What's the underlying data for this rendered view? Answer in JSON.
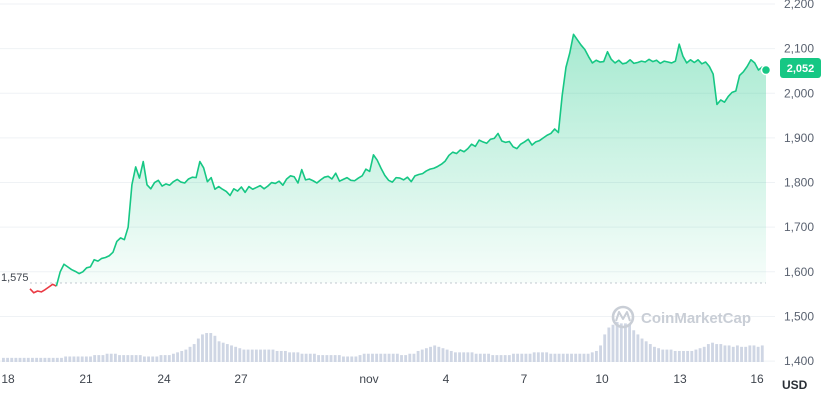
{
  "chart_data": {
    "type": "line",
    "title": "",
    "xlabel": "",
    "ylabel": "",
    "unit_label": "USD",
    "ylim": [
      1380,
      2200
    ],
    "y_ticks": [
      "2,200",
      "2,100",
      "2,000",
      "1,900",
      "1,800",
      "1,700",
      "1,600",
      "1,500",
      "1,400"
    ],
    "x_ticks": [
      "18",
      "21",
      "24",
      "27",
      "nov",
      "4",
      "7",
      "10",
      "13",
      "16"
    ],
    "start_label": "1,575",
    "current_label": "2,052",
    "watermark": "CoinMarketCap",
    "grid": true,
    "colors": {
      "up": "#16c784",
      "down": "#ea3943",
      "volume": "#cfd6e4",
      "grid": "#eff2f5",
      "reference": "#c3c8d0"
    },
    "series": [
      {
        "start_value": 1575,
        "values": [
          1562,
          1553,
          1557,
          1555,
          1560,
          1566,
          1572,
          1568,
          1600,
          1617,
          1611,
          1605,
          1601,
          1596,
          1600,
          1609,
          1611,
          1627,
          1624,
          1630,
          1632,
          1636,
          1644,
          1668,
          1676,
          1672,
          1700,
          1795,
          1835,
          1810,
          1847,
          1795,
          1786,
          1800,
          1805,
          1792,
          1797,
          1794,
          1802,
          1807,
          1801,
          1799,
          1808,
          1812,
          1811,
          1847,
          1833,
          1802,
          1811,
          1785,
          1791,
          1785,
          1780,
          1771,
          1786,
          1781,
          1790,
          1778,
          1791,
          1785,
          1789,
          1793,
          1786,
          1792,
          1800,
          1798,
          1803,
          1794,
          1808,
          1815,
          1813,
          1799,
          1829,
          1806,
          1808,
          1804,
          1799,
          1806,
          1812,
          1814,
          1808,
          1821,
          1803,
          1807,
          1811,
          1805,
          1804,
          1810,
          1815,
          1830,
          1825,
          1862,
          1850,
          1832,
          1816,
          1805,
          1801,
          1811,
          1810,
          1806,
          1812,
          1802,
          1815,
          1818,
          1820,
          1826,
          1830,
          1832,
          1836,
          1841,
          1848,
          1861,
          1868,
          1865,
          1873,
          1869,
          1876,
          1886,
          1881,
          1895,
          1891,
          1888,
          1897,
          1899,
          1910,
          1893,
          1890,
          1892,
          1880,
          1876,
          1886,
          1891,
          1897,
          1884,
          1891,
          1894,
          1900,
          1906,
          1910,
          1920,
          1912,
          1995,
          2058,
          2090,
          2132,
          2120,
          2108,
          2098,
          2082,
          2068,
          2074,
          2070,
          2071,
          2093,
          2076,
          2068,
          2074,
          2066,
          2068,
          2075,
          2067,
          2069,
          2072,
          2070,
          2076,
          2071,
          2074,
          2067,
          2072,
          2070,
          2068,
          2072,
          2110,
          2083,
          2068,
          2075,
          2069,
          2075,
          2066,
          2070,
          2060,
          2043,
          1975,
          1985,
          1980,
          1993,
          2002,
          2005,
          2040,
          2048,
          2060,
          2075,
          2068,
          2052,
          2059,
          2052
        ]
      }
    ],
    "volume_values": [
      3,
      3,
      3,
      3,
      3,
      3,
      3,
      3,
      3,
      3,
      3,
      3,
      3,
      3,
      3,
      4,
      4,
      4,
      4,
      4,
      4,
      4,
      5,
      5,
      5,
      6,
      6,
      6,
      5,
      5,
      5,
      5,
      5,
      5,
      4,
      4,
      4,
      4,
      5,
      5,
      5,
      6,
      7,
      8,
      9,
      11,
      13,
      17,
      20,
      21,
      21,
      19,
      15,
      14,
      13,
      12,
      11,
      10,
      9,
      9,
      9,
      9,
      9,
      9,
      9,
      9,
      8,
      8,
      8,
      7,
      7,
      7,
      6,
      6,
      6,
      6,
      5,
      5,
      5,
      5,
      5,
      5,
      4,
      4,
      4,
      4,
      5,
      6,
      6,
      6,
      6,
      6,
      6,
      6,
      6,
      6,
      5,
      5,
      6,
      6,
      8,
      9,
      10,
      11,
      12,
      11,
      10,
      9,
      8,
      7,
      7,
      7,
      7,
      7,
      6,
      6,
      6,
      6,
      5,
      5,
      5,
      5,
      5,
      6,
      6,
      6,
      6,
      6,
      7,
      7,
      7,
      7,
      6,
      6,
      6,
      6,
      6,
      6,
      6,
      6,
      6,
      6,
      7,
      8,
      12,
      20,
      25,
      27,
      29,
      28,
      28,
      27,
      23,
      20,
      17,
      15,
      13,
      11,
      10,
      9,
      9,
      9,
      8,
      8,
      8,
      8,
      8,
      9,
      10,
      11,
      13,
      14,
      13,
      13,
      12,
      12,
      11,
      12,
      11,
      11,
      12,
      12,
      11,
      12
    ]
  }
}
